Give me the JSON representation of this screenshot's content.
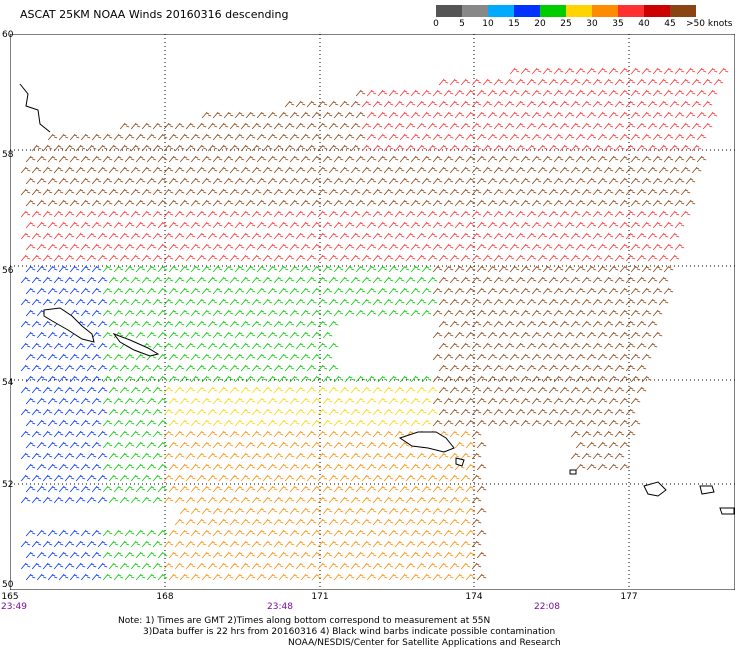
{
  "title": "ASCAT 25KM NOAA Winds 20160316 descending",
  "legend": {
    "labels": [
      "0",
      "5",
      "10",
      "15",
      "20",
      "25",
      "30",
      "35",
      "40",
      "45"
    ],
    "unit_label": ">50 knots",
    "colors": [
      "#555555",
      "#888888",
      "#00aaff",
      "#0033ff",
      "#00cc00",
      "#ffd400",
      "#ff8c00",
      "#ff3030",
      "#cc0000",
      "#8b4513",
      "#a000c0",
      "#200060"
    ]
  },
  "map": {
    "lat_labels": [
      "60",
      "58",
      "56",
      "54",
      "52",
      "50"
    ],
    "lon_labels": [
      "165",
      "168",
      "171",
      "174",
      "177"
    ],
    "time_labels": [
      "23:49",
      "23:48",
      "22:08"
    ]
  },
  "notes": {
    "line1": "Note: 1) Times are GMT 2)Times along bottom correspond to measurement at 55N",
    "line2": "3)Data buffer is 22 hrs from 20160316 4) Black wind barbs indicate possible contamination",
    "line3": "NOAA/NESDIS/Center for Satellite Applications and Research"
  }
}
